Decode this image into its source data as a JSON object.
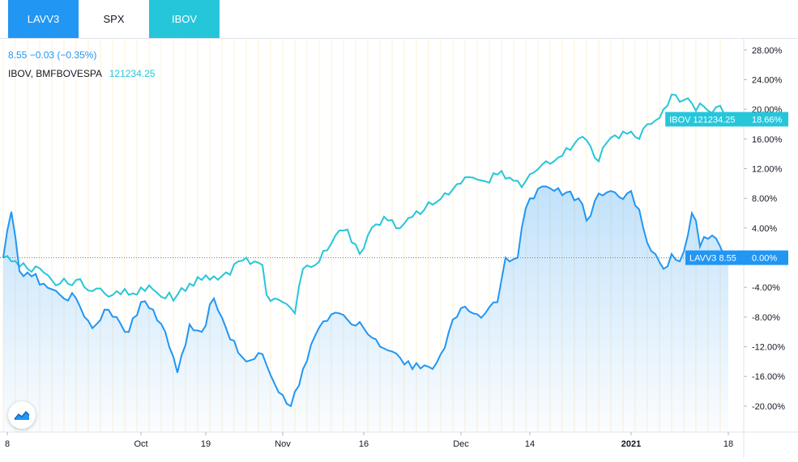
{
  "tabs": [
    {
      "label": "LAVV3"
    },
    {
      "label": "SPX"
    },
    {
      "label": "IBOV"
    }
  ],
  "legend": {
    "main_line": "8.55 −0.03 (−0.35%)",
    "compare_name": "IBOV, BMFBOVESPA",
    "compare_value": "121234.25"
  },
  "colors": {
    "lavv3": "#2196f3",
    "ibov": "#26c6da",
    "axis_text": "#131722",
    "grid": "#fdf0d5"
  },
  "chart_data": {
    "type": "line",
    "ylabel": "",
    "ylim": [
      -23.5,
      29.5
    ],
    "y_ticks": [
      "28.00%",
      "24.00%",
      "20.00%",
      "16.00%",
      "12.00%",
      "8.00%",
      "4.00%",
      "0.00%",
      "-4.00%",
      "-8.00%",
      "-12.00%",
      "-16.00%",
      "-20.00%"
    ],
    "y_tick_values": [
      28,
      24,
      20,
      16,
      12,
      8,
      4,
      0,
      -4,
      -8,
      -12,
      -16,
      -20
    ],
    "x_ticks": [
      "8",
      "Oct",
      "19",
      "Nov",
      "16",
      "Dec",
      "14",
      "2021",
      "18"
    ],
    "x_tick_index": [
      1,
      34,
      50,
      69,
      89,
      113,
      130,
      155,
      179
    ],
    "n_points": 179,
    "zero_line": 0,
    "series": [
      {
        "name": "LAVV3",
        "last_label": "LAVV3 8.55",
        "last_pct": "0.00%",
        "keypoints": [
          [
            0,
            0
          ],
          [
            2,
            6.2
          ],
          [
            4,
            -1.8
          ],
          [
            6,
            -2
          ],
          [
            10,
            -3.5
          ],
          [
            14,
            -5
          ],
          [
            18,
            -5.5
          ],
          [
            22,
            -9.5
          ],
          [
            25,
            -7
          ],
          [
            28,
            -8
          ],
          [
            31,
            -10
          ],
          [
            34,
            -6
          ],
          [
            37,
            -7
          ],
          [
            40,
            -10
          ],
          [
            43,
            -15.5
          ],
          [
            46,
            -9
          ],
          [
            49,
            -10
          ],
          [
            52,
            -5.5
          ],
          [
            56,
            -11
          ],
          [
            60,
            -14
          ],
          [
            64,
            -13
          ],
          [
            67,
            -17
          ],
          [
            69,
            -18.5
          ],
          [
            71,
            -20
          ],
          [
            74,
            -15
          ],
          [
            77,
            -10.5
          ],
          [
            80,
            -8.5
          ],
          [
            83,
            -7.5
          ],
          [
            86,
            -9
          ],
          [
            89,
            -9.5
          ],
          [
            92,
            -11
          ],
          [
            95,
            -12.5
          ],
          [
            98,
            -13.5
          ],
          [
            101,
            -15
          ],
          [
            104,
            -14.5
          ],
          [
            106,
            -15
          ],
          [
            108,
            -13
          ],
          [
            110,
            -10
          ],
          [
            113,
            -6.8
          ],
          [
            116,
            -7.5
          ],
          [
            119,
            -7.5
          ],
          [
            122,
            -6
          ],
          [
            123,
            -3
          ],
          [
            124,
            0
          ],
          [
            126,
            -0.2
          ],
          [
            127,
            0
          ],
          [
            128,
            4
          ],
          [
            130,
            8
          ],
          [
            133,
            9.6
          ],
          [
            136,
            9
          ],
          [
            139,
            8.8
          ],
          [
            142,
            8
          ],
          [
            144,
            5
          ],
          [
            146,
            7.6
          ],
          [
            149,
            8.8
          ],
          [
            152,
            8.2
          ],
          [
            155,
            9
          ],
          [
            157,
            6.5
          ],
          [
            158,
            4
          ],
          [
            159,
            2
          ],
          [
            161,
            0.5
          ],
          [
            163,
            -1.5
          ],
          [
            165,
            0.5
          ],
          [
            167,
            -0.5
          ],
          [
            169,
            3
          ],
          [
            170,
            6
          ],
          [
            171,
            5
          ],
          [
            172,
            1.5
          ],
          [
            173,
            2.8
          ],
          [
            175,
            3
          ],
          [
            177,
            1.5
          ],
          [
            179,
            0
          ]
        ]
      },
      {
        "name": "IBOV",
        "last_label": "IBOV 121234.25",
        "last_pct": "18.66%",
        "keypoints": [
          [
            0,
            0
          ],
          [
            2,
            -0.5
          ],
          [
            4,
            -1.2
          ],
          [
            6,
            -1.5
          ],
          [
            10,
            -2
          ],
          [
            14,
            -3.5
          ],
          [
            18,
            -3
          ],
          [
            22,
            -4.5
          ],
          [
            25,
            -4.8
          ],
          [
            28,
            -4.5
          ],
          [
            31,
            -5
          ],
          [
            34,
            -4
          ],
          [
            37,
            -4.3
          ],
          [
            40,
            -5.5
          ],
          [
            43,
            -5
          ],
          [
            46,
            -3.5
          ],
          [
            49,
            -3
          ],
          [
            52,
            -2.5
          ],
          [
            56,
            -2.3
          ],
          [
            58,
            -0.5
          ],
          [
            60,
            0
          ],
          [
            62,
            -0.5
          ],
          [
            64,
            -1
          ],
          [
            65,
            -5
          ],
          [
            67,
            -5.5
          ],
          [
            69,
            -6
          ],
          [
            71,
            -6.8
          ],
          [
            72,
            -7.5
          ],
          [
            74,
            -1.5
          ],
          [
            77,
            -1
          ],
          [
            80,
            1
          ],
          [
            82,
            3
          ],
          [
            85,
            3.8
          ],
          [
            88,
            0.5
          ],
          [
            90,
            3
          ],
          [
            92,
            4.5
          ],
          [
            95,
            5
          ],
          [
            98,
            4
          ],
          [
            101,
            5.5
          ],
          [
            104,
            6.5
          ],
          [
            107,
            7.5
          ],
          [
            110,
            8.5
          ],
          [
            113,
            10
          ],
          [
            116,
            10.8
          ],
          [
            119,
            10.3
          ],
          [
            122,
            11.2
          ],
          [
            125,
            10.8
          ],
          [
            128,
            9.5
          ],
          [
            131,
            11.5
          ],
          [
            134,
            13
          ],
          [
            137,
            13.5
          ],
          [
            140,
            14.5
          ],
          [
            143,
            16.3
          ],
          [
            145,
            15
          ],
          [
            147,
            13
          ],
          [
            149,
            15.5
          ],
          [
            151,
            16.5
          ],
          [
            153,
            17
          ],
          [
            155,
            17
          ],
          [
            157,
            16
          ],
          [
            159,
            18
          ],
          [
            161,
            18.5
          ],
          [
            163,
            20
          ],
          [
            164,
            20.5
          ],
          [
            165,
            22
          ],
          [
            167,
            21
          ],
          [
            169,
            21.5
          ],
          [
            171,
            19.8
          ],
          [
            172,
            20.8
          ],
          [
            174,
            19.8
          ],
          [
            176,
            20.3
          ],
          [
            178,
            19.3
          ],
          [
            179,
            18.66
          ]
        ]
      }
    ]
  }
}
